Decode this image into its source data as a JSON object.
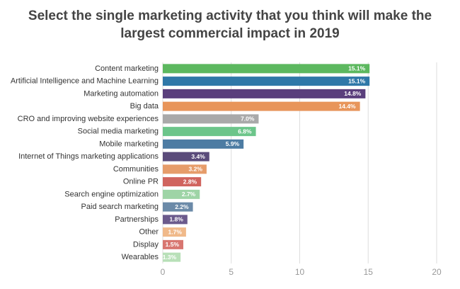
{
  "chart_data": {
    "type": "bar",
    "orientation": "horizontal",
    "title": "Select the single marketing activity that you think will make the largest commercial impact in 2019",
    "categories": [
      "Content marketing",
      "Artificial Intelligence and Machine Learning",
      "Marketing automation",
      "Big data",
      "CRO and improving website experiences",
      "Social media marketing",
      "Mobile marketing",
      "Internet of Things marketing applications",
      "Communities",
      "Online PR",
      "Search engine optimization",
      "Paid search marketing",
      "Partnerships",
      "Other",
      "Display",
      "Wearables"
    ],
    "values": [
      15.1,
      15.1,
      14.8,
      14.4,
      7.0,
      6.8,
      5.9,
      3.4,
      3.2,
      2.8,
      2.7,
      2.2,
      1.8,
      1.7,
      1.5,
      1.3
    ],
    "value_labels": [
      "15.1%",
      "15.1%",
      "14.8%",
      "14.4%",
      "7.0%",
      "6.8%",
      "5.9%",
      "3.4%",
      "3.2%",
      "2.8%",
      "2.7%",
      "2.2%",
      "1.8%",
      "1.7%",
      "1.5%",
      "1.3%"
    ],
    "colors": [
      "#5cb85f",
      "#2f78a8",
      "#5a3f7c",
      "#e8955a",
      "#a9a9a9",
      "#6cc58a",
      "#4d7ca3",
      "#5a4b7a",
      "#e69c6a",
      "#d0645e",
      "#9ed4a6",
      "#6b8aa8",
      "#6b5a8c",
      "#f0b98a",
      "#d87670",
      "#b8e0b8"
    ],
    "xlim": [
      0,
      20
    ],
    "xticks": [
      0,
      5,
      10,
      15,
      20
    ],
    "grid": true
  }
}
